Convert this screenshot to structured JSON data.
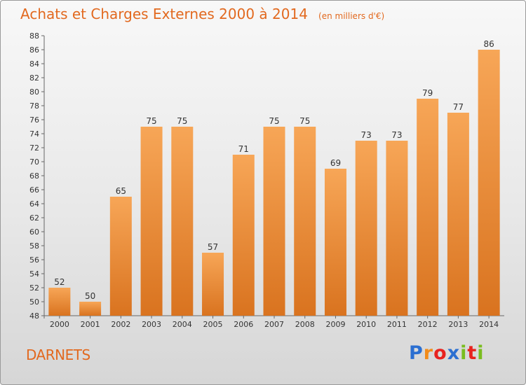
{
  "header": {
    "title": "Achats et Charges Externes 2000 à 2014",
    "subtitle": "(en milliers d'€)"
  },
  "footer": {
    "commune": "DARNETS",
    "brand": "Proxiti",
    "brand_colors": [
      "#2b6fd1",
      "#f28c1a",
      "#e8231f",
      "#2b6fd1",
      "#7abd1f",
      "#e8231f",
      "#7abd1f"
    ]
  },
  "colors": {
    "bar_top": "#f7a657",
    "bar_bottom": "#d9731f",
    "title": "#e2691f"
  },
  "chart_data": {
    "type": "bar",
    "categories": [
      "2000",
      "2001",
      "2002",
      "2003",
      "2004",
      "2005",
      "2006",
      "2007",
      "2008",
      "2009",
      "2010",
      "2011",
      "2012",
      "2013",
      "2014"
    ],
    "values": [
      52,
      50,
      65,
      75,
      75,
      57,
      71,
      75,
      75,
      69,
      73,
      73,
      79,
      77,
      86
    ],
    "title": "Achats et Charges Externes 2000 à 2014",
    "subtitle": "(en milliers d'€)",
    "ylim": [
      48,
      88
    ],
    "yticks": [
      48,
      50,
      52,
      54,
      56,
      58,
      60,
      62,
      64,
      66,
      68,
      70,
      72,
      74,
      76,
      78,
      80,
      82,
      84,
      86,
      88
    ],
    "grid": false,
    "data_labels": true
  }
}
